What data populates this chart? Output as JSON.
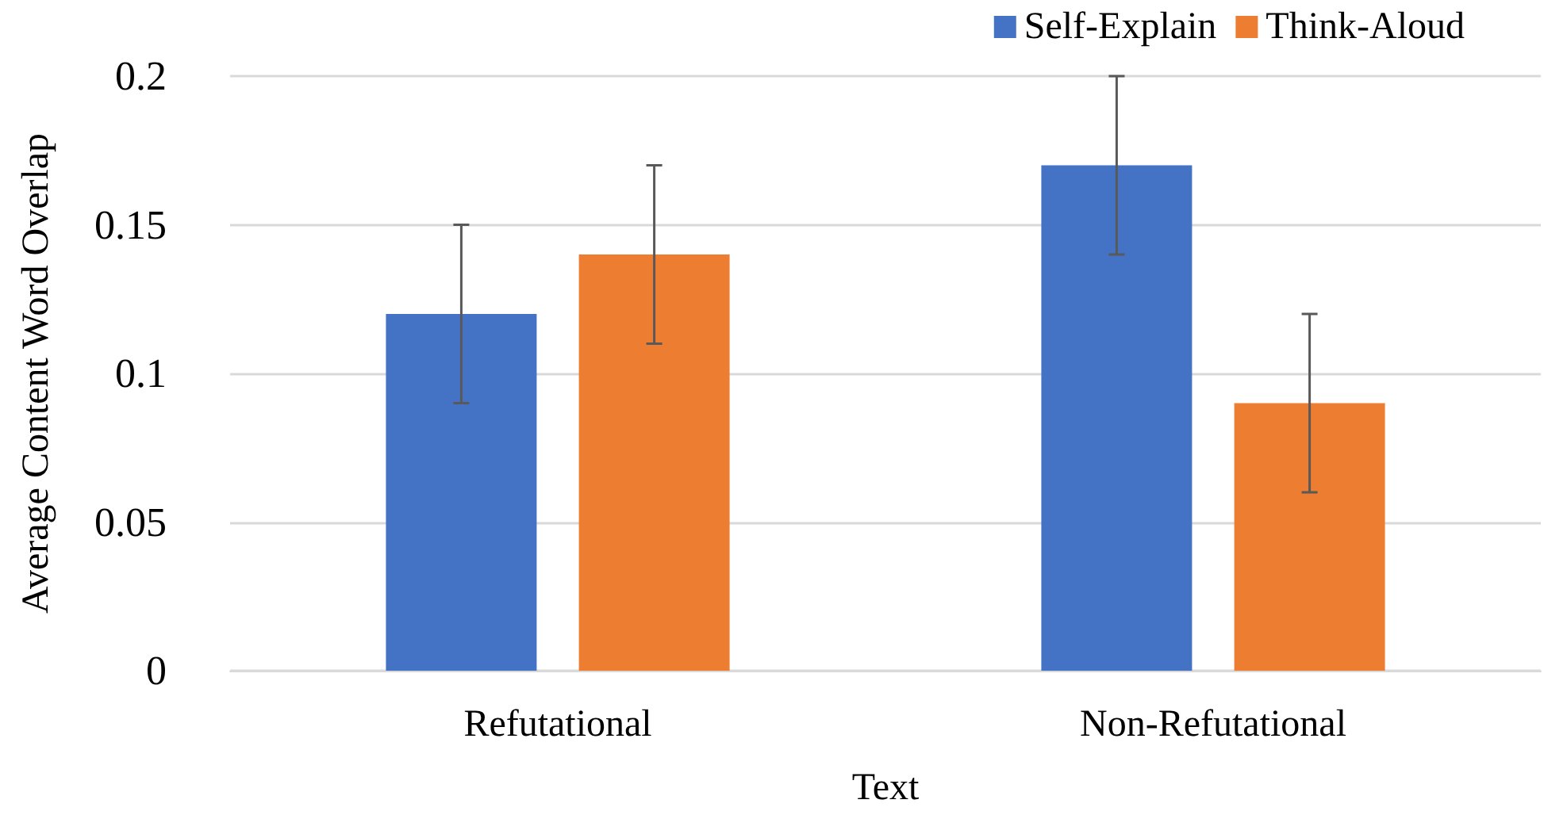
{
  "chart_data": {
    "type": "bar",
    "xlabel": "Text",
    "ylabel": "Average Content Word Overlap",
    "categories": [
      "Refutational",
      "Non-Refutational"
    ],
    "series": [
      {
        "name": "Self-Explain",
        "color": "#4472c4",
        "values": [
          0.12,
          0.17
        ],
        "errors": [
          0.03,
          0.03
        ]
      },
      {
        "name": "Think-Aloud",
        "color": "#ed7d31",
        "values": [
          0.14,
          0.09
        ],
        "errors": [
          0.03,
          0.03
        ]
      }
    ],
    "ylim": [
      0,
      0.2
    ],
    "yticks": [
      0,
      0.05,
      0.1,
      0.15,
      0.2
    ],
    "grid": "y",
    "legend": "top right"
  }
}
